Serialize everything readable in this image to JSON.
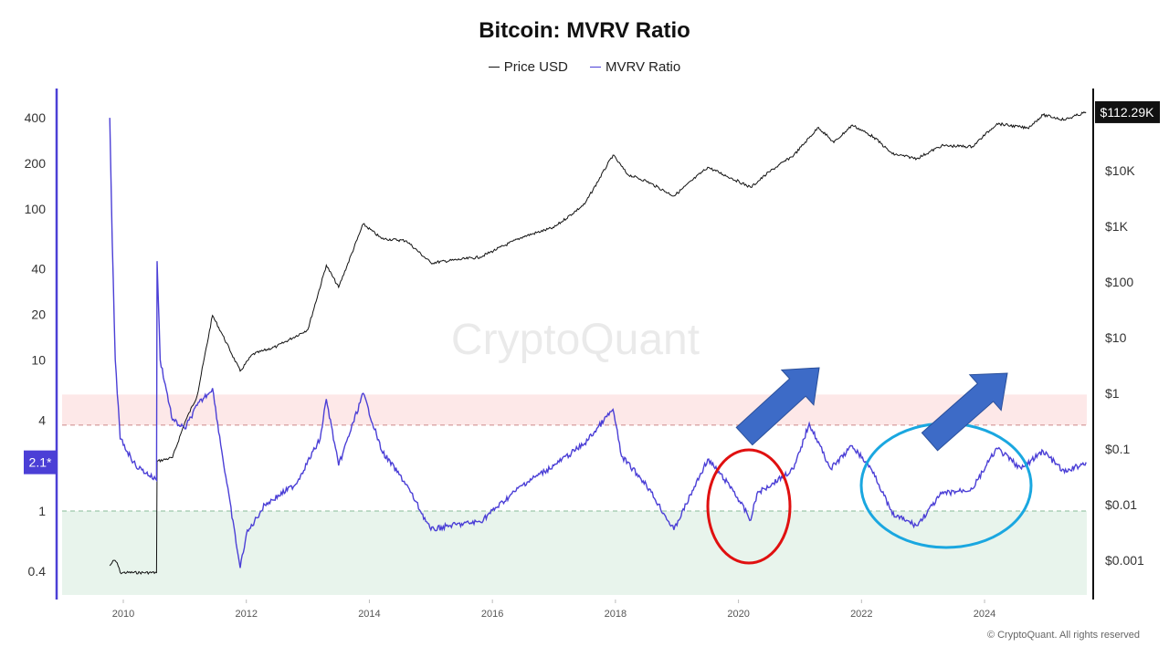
{
  "chart_data": {
    "type": "line",
    "title": "Bitcoin: MVRV Ratio",
    "watermark": "CryptoQuant",
    "footer": "© CryptoQuant. All rights reserved",
    "legend_placement": "top-center",
    "x_ticks": [
      "2010",
      "2012",
      "2014",
      "2016",
      "2018",
      "2020",
      "2022",
      "2024"
    ],
    "left_axis": {
      "scale": "log",
      "ticks": [
        "400",
        "200",
        "100",
        "40",
        "20",
        "10",
        "4",
        "1",
        "0.4"
      ],
      "tick_values": [
        400,
        200,
        100,
        40,
        20,
        10,
        4,
        1,
        0.4
      ],
      "current_label": "2.1*",
      "current_value": 2.1
    },
    "right_axis": {
      "scale": "log",
      "ticks": [
        "$10K",
        "$1K",
        "$100",
        "$10",
        "$1",
        "$0.1",
        "$0.01",
        "$0.001"
      ],
      "tick_values": [
        10000,
        1000,
        100,
        10,
        1,
        0.1,
        0.01,
        0.001
      ],
      "current_label": "$112.29K",
      "current_value": 112290
    },
    "zones": {
      "overvalued": [
        3.7,
        5.9
      ],
      "undervalued_below": 1,
      "overvalued_color": "#fde8e8",
      "undervalued_color": "#e8f4ec"
    },
    "colors": {
      "price": "#111111",
      "mvrv": "#4b3fd6",
      "red_circle": "#e01010",
      "blue_ellipse": "#1aa7e0",
      "arrow": "#3d6bc7"
    },
    "series": [
      {
        "name": "Price USD",
        "axis": "right",
        "points": [
          [
            2009.78,
            0.0008
          ],
          [
            2009.85,
            0.001
          ],
          [
            2009.9,
            0.0009
          ],
          [
            2009.95,
            0.0006
          ],
          [
            2010.54,
            0.0006
          ],
          [
            2010.55,
            0.06
          ],
          [
            2010.8,
            0.07
          ],
          [
            2011.0,
            0.3
          ],
          [
            2011.2,
            0.9
          ],
          [
            2011.45,
            25
          ],
          [
            2011.6,
            12
          ],
          [
            2011.9,
            2.5
          ],
          [
            2012.1,
            5
          ],
          [
            2012.5,
            7
          ],
          [
            2013.0,
            14
          ],
          [
            2013.3,
            200
          ],
          [
            2013.5,
            80
          ],
          [
            2013.9,
            1100
          ],
          [
            2014.2,
            600
          ],
          [
            2014.6,
            550
          ],
          [
            2015.0,
            220
          ],
          [
            2015.8,
            280
          ],
          [
            2016.5,
            650
          ],
          [
            2017.0,
            950
          ],
          [
            2017.5,
            2500
          ],
          [
            2017.96,
            19000
          ],
          [
            2018.2,
            8500
          ],
          [
            2018.5,
            6500
          ],
          [
            2018.95,
            3500
          ],
          [
            2019.5,
            11500
          ],
          [
            2019.9,
            7200
          ],
          [
            2020.2,
            5000
          ],
          [
            2020.5,
            9500
          ],
          [
            2020.9,
            19000
          ],
          [
            2021.3,
            60000
          ],
          [
            2021.55,
            32000
          ],
          [
            2021.85,
            66000
          ],
          [
            2022.2,
            40000
          ],
          [
            2022.5,
            20000
          ],
          [
            2022.9,
            16500
          ],
          [
            2023.3,
            28000
          ],
          [
            2023.8,
            27000
          ],
          [
            2024.2,
            70000
          ],
          [
            2024.7,
            58000
          ],
          [
            2024.95,
            100000
          ],
          [
            2025.3,
            82000
          ],
          [
            2025.65,
            112290
          ]
        ]
      },
      {
        "name": "MVRV Ratio",
        "axis": "left",
        "points": [
          [
            2009.78,
            400
          ],
          [
            2009.82,
            60
          ],
          [
            2009.87,
            10
          ],
          [
            2009.95,
            3
          ],
          [
            2010.2,
            2
          ],
          [
            2010.54,
            1.6
          ],
          [
            2010.55,
            45
          ],
          [
            2010.6,
            10
          ],
          [
            2010.8,
            4
          ],
          [
            2011.0,
            3.5
          ],
          [
            2011.2,
            5
          ],
          [
            2011.45,
            6.5
          ],
          [
            2011.6,
            2.5
          ],
          [
            2011.9,
            0.42
          ],
          [
            2012.0,
            0.7
          ],
          [
            2012.3,
            1.1
          ],
          [
            2012.8,
            1.5
          ],
          [
            2013.2,
            3
          ],
          [
            2013.3,
            5.5
          ],
          [
            2013.5,
            2
          ],
          [
            2013.9,
            6
          ],
          [
            2014.2,
            2.5
          ],
          [
            2014.6,
            1.5
          ],
          [
            2015.0,
            0.75
          ],
          [
            2015.3,
            0.8
          ],
          [
            2015.8,
            0.85
          ],
          [
            2016.5,
            1.5
          ],
          [
            2017.0,
            2
          ],
          [
            2017.5,
            2.8
          ],
          [
            2017.96,
            4.7
          ],
          [
            2018.1,
            2.3
          ],
          [
            2018.5,
            1.5
          ],
          [
            2018.95,
            0.75
          ],
          [
            2019.5,
            2.2
          ],
          [
            2019.9,
            1.4
          ],
          [
            2020.2,
            0.87
          ],
          [
            2020.3,
            1.3
          ],
          [
            2020.9,
            1.9
          ],
          [
            2021.15,
            3.8
          ],
          [
            2021.5,
            1.9
          ],
          [
            2021.85,
            2.7
          ],
          [
            2022.2,
            1.8
          ],
          [
            2022.5,
            0.95
          ],
          [
            2022.9,
            0.8
          ],
          [
            2023.3,
            1.3
          ],
          [
            2023.8,
            1.4
          ],
          [
            2024.2,
            2.6
          ],
          [
            2024.6,
            1.9
          ],
          [
            2024.95,
            2.5
          ],
          [
            2025.3,
            1.8
          ],
          [
            2025.65,
            2.1
          ]
        ]
      }
    ]
  }
}
